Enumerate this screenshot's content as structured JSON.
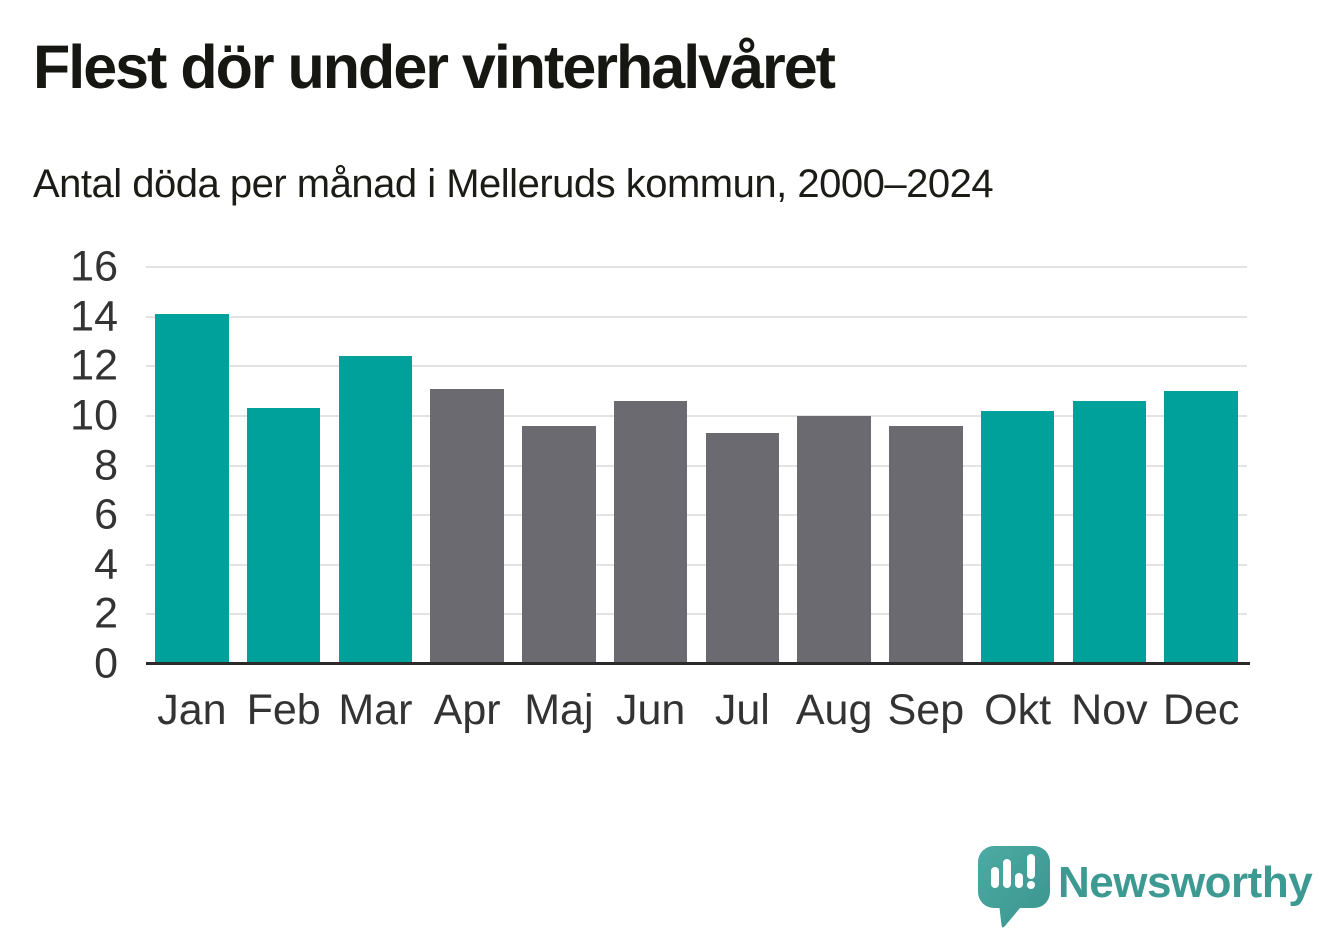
{
  "title": "Flest dör under vinterhalvåret",
  "subtitle": "Antal döda per månad i Melleruds kommun, 2000–2024",
  "branding": {
    "name": "Newsworthy",
    "icon": "speech-bubble-bar-chart-icon",
    "text_color": "#3d9a93",
    "icon_color_top": "#4caba4",
    "icon_color_bottom": "#3a948d"
  },
  "colors": {
    "teal": "#00a19a",
    "gray": "#6b6a70",
    "gridline": "#e3e3e3",
    "axis": "#2b2b2b",
    "tick_text": "#333333"
  },
  "chart_data": {
    "type": "bar",
    "title": "Flest dör under vinterhalvåret",
    "subtitle": "Antal döda per månad i Melleruds kommun, 2000–2024",
    "categories": [
      "Jan",
      "Feb",
      "Mar",
      "Apr",
      "Maj",
      "Jun",
      "Jul",
      "Aug",
      "Sep",
      "Okt",
      "Nov",
      "Dec"
    ],
    "values": [
      14.1,
      10.3,
      12.4,
      11.1,
      9.6,
      10.6,
      9.3,
      10.0,
      9.6,
      10.2,
      10.6,
      11.0
    ],
    "bar_colors": [
      "teal",
      "teal",
      "teal",
      "gray",
      "gray",
      "gray",
      "gray",
      "gray",
      "gray",
      "teal",
      "teal",
      "teal"
    ],
    "xlabel": "",
    "ylabel": "",
    "ylim": [
      0,
      16
    ],
    "yticks": [
      0,
      2,
      4,
      6,
      8,
      10,
      12,
      14,
      16
    ],
    "grid": true,
    "legend": false,
    "bar_width_fraction": 0.8
  }
}
